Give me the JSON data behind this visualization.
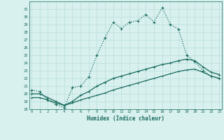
{
  "xlabel": "Humidex (Indice chaleur)",
  "x": [
    0,
    1,
    2,
    3,
    4,
    5,
    6,
    7,
    8,
    9,
    10,
    11,
    12,
    13,
    14,
    15,
    16,
    17,
    18,
    19,
    20,
    21,
    22,
    23
  ],
  "line1": [
    20.5,
    20.3,
    19.2,
    18.6,
    18.2,
    20.8,
    21.0,
    22.2,
    25.0,
    27.3,
    29.3,
    28.5,
    29.3,
    29.5,
    30.3,
    29.3,
    31.2,
    29.0,
    28.4,
    25.0,
    24.2,
    23.0,
    22.3,
    22.0
  ],
  "line2": [
    20.0,
    20.0,
    19.5,
    19.0,
    18.5,
    19.0,
    19.8,
    20.3,
    21.0,
    21.5,
    22.0,
    22.3,
    22.6,
    22.9,
    23.2,
    23.5,
    23.8,
    24.0,
    24.3,
    24.5,
    24.3,
    23.5,
    22.8,
    22.5
  ],
  "line3": [
    19.5,
    19.5,
    19.2,
    18.8,
    18.5,
    18.8,
    19.2,
    19.5,
    19.8,
    20.1,
    20.5,
    20.8,
    21.1,
    21.4,
    21.7,
    22.0,
    22.3,
    22.6,
    22.9,
    23.1,
    23.2,
    22.8,
    22.3,
    22.0
  ],
  "line_color": "#1a6b5e",
  "bg_color": "#d8f0ee",
  "grid_color": "#b8dedd",
  "ylim": [
    18,
    32
  ],
  "yticks": [
    18,
    19,
    20,
    21,
    22,
    23,
    24,
    25,
    26,
    27,
    28,
    29,
    30,
    31
  ],
  "xticks": [
    0,
    1,
    2,
    3,
    4,
    5,
    6,
    7,
    8,
    9,
    10,
    11,
    12,
    13,
    14,
    15,
    16,
    17,
    18,
    19,
    20,
    21,
    22,
    23
  ]
}
